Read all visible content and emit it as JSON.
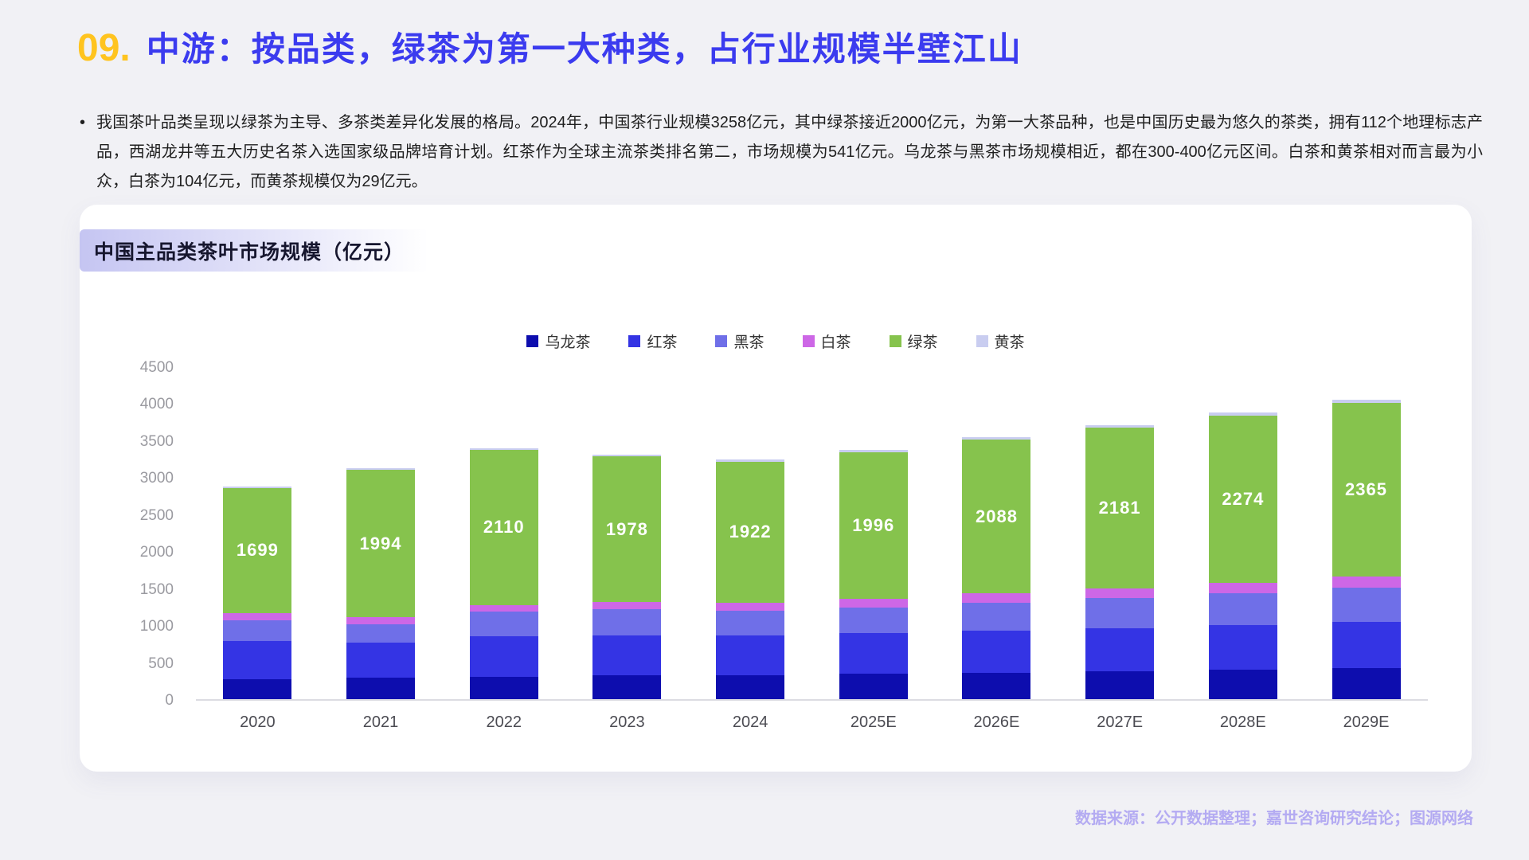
{
  "page": {
    "number": "09.",
    "title": "中游：按品类，绿茶为第一大种类，占行业规模半壁江山"
  },
  "bullet": {
    "marker": "•",
    "text": "我国茶叶品类呈现以绿茶为主导、多茶类差异化发展的格局。2024年，中国茶行业规模3258亿元，其中绿茶接近2000亿元，为第一大茶品种，也是中国历史最为悠久的茶类，拥有112个地理标志产品，西湖龙井等五大历史名茶入选国家级品牌培育计划。红茶作为全球主流茶类排名第二，市场规模为541亿元。乌龙茶与黑茶市场规模相近，都在300-400亿元区间。白茶和黄茶相对而言最为小众，白茶为104亿元，而黄茶规模仅为29亿元。"
  },
  "footer": {
    "source": "数据来源：公开数据整理；嘉世咨询研究结论；图源网络"
  },
  "colors": {
    "accent_gold": "#ffc41f",
    "accent_blue": "#3b3bef",
    "page_background": "#f1f1f5",
    "card_background": "#ffffff",
    "footer_text": "#b4abf2"
  },
  "chart_data": {
    "type": "bar",
    "stacked": true,
    "title": "中国主品类茶叶市场规模（亿元）",
    "categories": [
      "2020",
      "2021",
      "2022",
      "2023",
      "2024",
      "2025E",
      "2026E",
      "2027E",
      "2028E",
      "2029E"
    ],
    "series": [
      {
        "name": "乌龙茶",
        "color": "#0d0dae",
        "labeled": false,
        "values": [
          275,
          287,
          300,
          323,
          330,
          341,
          360,
          378,
          398,
          420
        ]
      },
      {
        "name": "红茶",
        "color": "#3434e4",
        "labeled": false,
        "values": [
          510,
          484,
          555,
          545,
          541,
          552,
          571,
          590,
          610,
          630
        ]
      },
      {
        "name": "黑茶",
        "color": "#6f6fe8",
        "labeled": false,
        "values": [
          290,
          250,
          330,
          350,
          332,
          352,
          382,
          405,
          430,
          465
        ]
      },
      {
        "name": "白茶",
        "color": "#cd67e6",
        "labeled": false,
        "values": [
          95,
          97,
          94,
          100,
          104,
          115,
          124,
          132,
          140,
          148
        ]
      },
      {
        "name": "绿茶",
        "color": "#86c34d",
        "labeled": true,
        "values": [
          1699,
          1994,
          2110,
          1978,
          1922,
          1996,
          2088,
          2181,
          2274,
          2365
        ]
      },
      {
        "name": "黄茶",
        "color": "#c9cdf0",
        "labeled": false,
        "values": [
          20,
          25,
          22,
          26,
          29,
          31,
          33,
          36,
          39,
          42
        ]
      }
    ],
    "ylabel": "",
    "xlabel": "",
    "ylim": [
      0,
      4500
    ],
    "ytick_step": 500,
    "grid": false,
    "legend_position": "top"
  }
}
